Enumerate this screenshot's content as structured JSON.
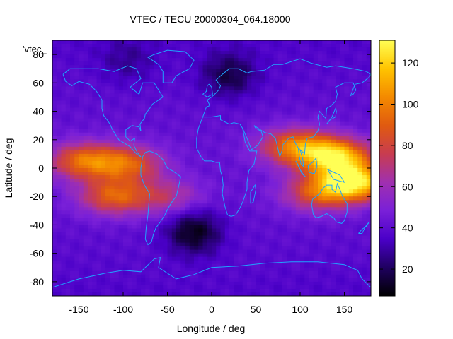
{
  "chart_data": {
    "type": "heatmap",
    "title": "VTEC / TECU 20000304_064.18000",
    "xlabel": "Longitude / deg",
    "ylabel": "Latitude / deg",
    "series_label": "'vtec_",
    "xlim": [
      -180,
      180
    ],
    "ylim": [
      -90,
      90
    ],
    "x_ticks": [
      -150,
      -100,
      -50,
      0,
      50,
      100,
      150
    ],
    "y_ticks": [
      80,
      60,
      40,
      20,
      0,
      -20,
      -40,
      -60,
      -80
    ],
    "colorbar": {
      "range": [
        7,
        131
      ],
      "ticks": [
        20,
        40,
        60,
        80,
        100,
        120
      ],
      "palette": [
        "#000000",
        "#1f0060",
        "#4a00c8",
        "#7a20d8",
        "#a030b0",
        "#c83c50",
        "#e05a10",
        "#f48a00",
        "#ffc400",
        "#ffff55"
      ]
    },
    "coastline_color": "#1fa3ff",
    "enhancements": [
      {
        "lon": -145,
        "lat": 5,
        "peak": 90
      },
      {
        "lon": -95,
        "lat": 3,
        "peak": 85
      },
      {
        "lon": -50,
        "lat": -20,
        "peak": 65
      },
      {
        "lon": -110,
        "lat": -20,
        "peak": 88
      },
      {
        "lon": 95,
        "lat": 15,
        "peak": 95
      },
      {
        "lon": 140,
        "lat": 8,
        "peak": 115
      },
      {
        "lon": 160,
        "lat": -10,
        "peak": 125
      },
      {
        "lon": 120,
        "lat": -18,
        "peak": 80
      }
    ],
    "depletions": [
      {
        "lon": -20,
        "lat": -45,
        "depth": 10
      },
      {
        "lon": 20,
        "lat": 65,
        "depth": 18
      },
      {
        "lon": -95,
        "lat": 75,
        "depth": 30
      }
    ],
    "background_level": 40
  }
}
